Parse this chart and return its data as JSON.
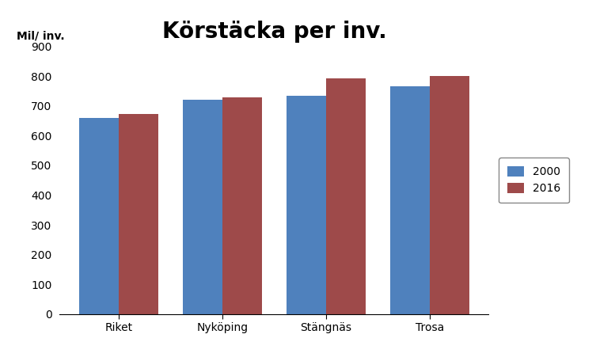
{
  "title": "Körstäcka per inv.",
  "ylabel": "Mil/ inv.",
  "categories": [
    "Riket",
    "Nyköping",
    "Stängnäs",
    "Trosa"
  ],
  "series": {
    "2000": [
      660,
      722,
      735,
      765
    ],
    "2016": [
      672,
      728,
      792,
      800
    ]
  },
  "bar_colors": {
    "2000": "#4f81bd",
    "2016": "#9e4a4a"
  },
  "ylim": [
    0,
    900
  ],
  "yticks": [
    0,
    100,
    200,
    300,
    400,
    500,
    600,
    700,
    800,
    900
  ],
  "bar_width": 0.38,
  "legend_labels": [
    "2000",
    "2016"
  ],
  "background_color": "#FFFFFF",
  "title_fontsize": 20,
  "ylabel_fontsize": 10,
  "tick_fontsize": 10,
  "legend_fontsize": 10
}
